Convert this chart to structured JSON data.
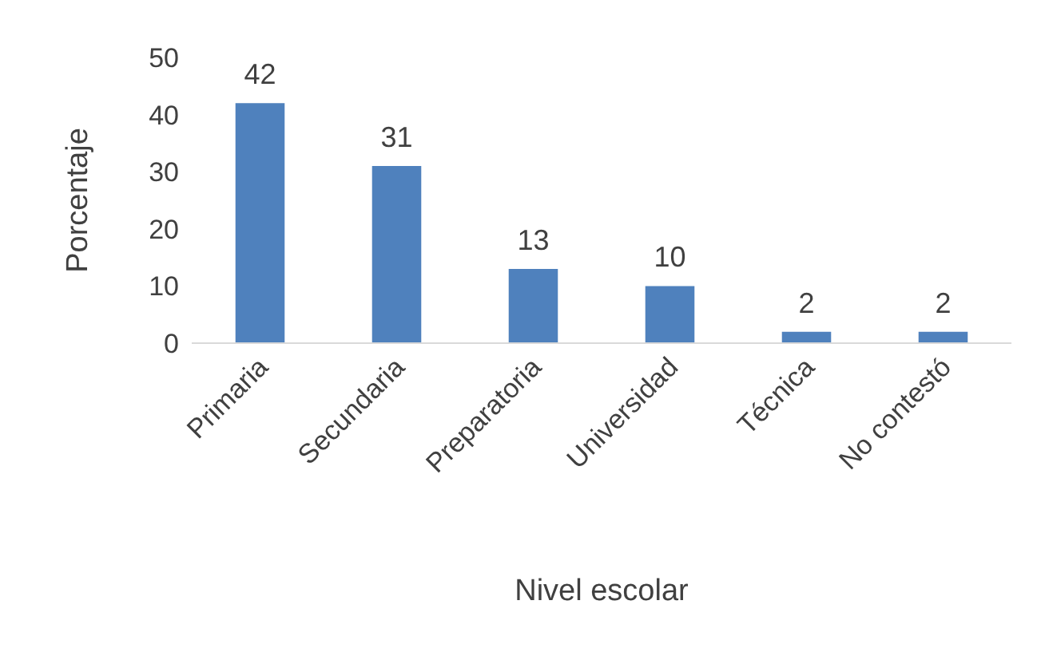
{
  "chart_data": {
    "type": "bar",
    "xlabel": "Nivel escolar",
    "ylabel": "Porcentaje",
    "categories": [
      "Primaria",
      "Secundaria",
      "Preparatoria",
      "Universidad",
      "Técnica",
      "No contestó"
    ],
    "values": [
      42,
      31,
      13,
      10,
      2,
      2
    ],
    "color": "#4f81bd",
    "ylim": [
      0,
      50
    ],
    "yticks": [
      0,
      10,
      20,
      30,
      40,
      50
    ],
    "data_labels": true
  }
}
